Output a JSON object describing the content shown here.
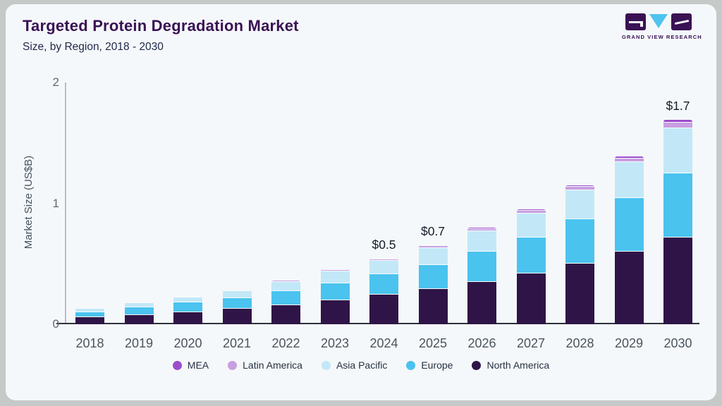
{
  "header": {
    "title": "Targeted Protein Degradation Market",
    "subtitle": "Size, by Region, 2018 - 2030"
  },
  "logo": {
    "text": "GRAND VIEW RESEARCH"
  },
  "colors": {
    "accent_purple": "#3a1254",
    "card_bg": "#f5f8fa",
    "page_bg": "#c5cac9",
    "axis_dark": "#2c323b",
    "axis_light": "#b7bdc5"
  },
  "chart_data": {
    "type": "bar",
    "stacked": true,
    "title": "Targeted Protein Degradation Market Size, by Region, 2018 - 2030",
    "ylabel": "Market Size (US$B)",
    "xlabel": "",
    "ylim": [
      0,
      2
    ],
    "yticks": [
      0,
      1,
      2
    ],
    "grid": false,
    "legend_position": "bottom",
    "categories": [
      "2018",
      "2019",
      "2020",
      "2021",
      "2022",
      "2023",
      "2024",
      "2025",
      "2026",
      "2027",
      "2028",
      "2029",
      "2030"
    ],
    "series": [
      {
        "name": "North America",
        "color": "#2f1547",
        "values": [
          0.06,
          0.076,
          0.098,
          0.128,
          0.158,
          0.2,
          0.245,
          0.29,
          0.35,
          0.42,
          0.5,
          0.6,
          0.72
        ]
      },
      {
        "name": "Europe",
        "color": "#4ac3ef",
        "values": [
          0.042,
          0.066,
          0.084,
          0.09,
          0.118,
          0.14,
          0.17,
          0.2,
          0.25,
          0.295,
          0.37,
          0.445,
          0.53
        ]
      },
      {
        "name": "Asia Pacific",
        "color": "#c2e8f7",
        "values": [
          0.027,
          0.031,
          0.039,
          0.055,
          0.075,
          0.096,
          0.11,
          0.14,
          0.17,
          0.2,
          0.24,
          0.295,
          0.37
        ]
      },
      {
        "name": "Latin America",
        "color": "#c89fe0",
        "values": [
          0.003,
          0.004,
          0.005,
          0.006,
          0.008,
          0.012,
          0.014,
          0.016,
          0.018,
          0.022,
          0.026,
          0.03,
          0.045
        ]
      },
      {
        "name": "MEA",
        "color": "#9c4ccd",
        "values": [
          0.002,
          0.002,
          0.003,
          0.003,
          0.004,
          0.005,
          0.006,
          0.008,
          0.01,
          0.012,
          0.014,
          0.016,
          0.025
        ]
      }
    ],
    "annotations": [
      {
        "category": "2024",
        "label": "$0.5"
      },
      {
        "category": "2025",
        "label": "$0.7"
      },
      {
        "category": "2030",
        "label": "$1.7"
      }
    ],
    "legend": [
      "MEA",
      "Latin America",
      "Asia Pacific",
      "Europe",
      "North America"
    ]
  }
}
